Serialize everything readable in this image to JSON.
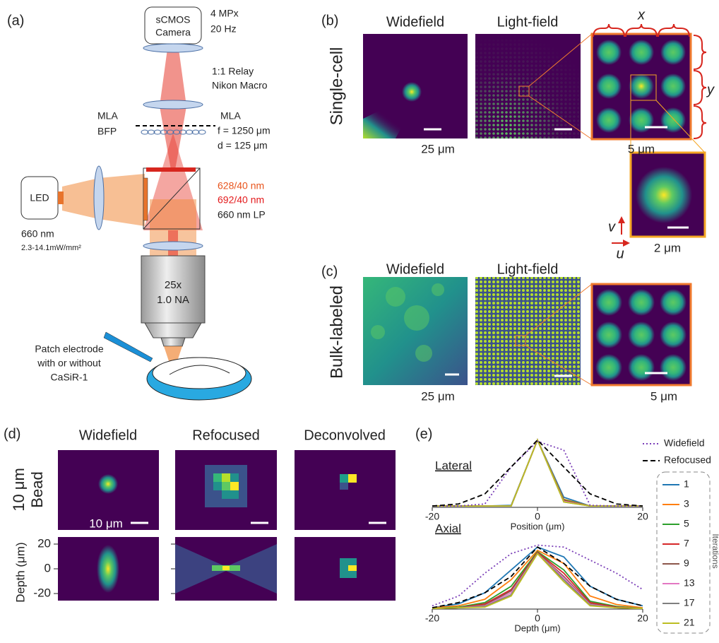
{
  "panel_a": {
    "label": "(a)",
    "camera": [
      "sCMOS",
      "Camera"
    ],
    "camera_specs": [
      "4 MPx",
      "20 Hz"
    ],
    "relay": [
      "1:1 Relay",
      "Nikon Macro"
    ],
    "mla_left": [
      "MLA",
      "BFP"
    ],
    "mla_right": [
      "MLA",
      "f = 1250 μm",
      "d = 125 μm"
    ],
    "filters": [
      "628/40 nm",
      "692/40 nm",
      "660 nm LP"
    ],
    "led": "LED",
    "led_specs": [
      "660 nm",
      "2.3-14.1mW/mm²"
    ],
    "objective": [
      "25x",
      "1.0 NA"
    ],
    "electrode": [
      "Patch electrode",
      "with or without",
      "CaSiR-1"
    ]
  },
  "panel_b": {
    "label": "(b)",
    "row_label": "Single-cell",
    "titles": [
      "Widefield",
      "Light-field"
    ],
    "axis_x": "x",
    "axis_y": "y",
    "scale_bars": [
      "25 μm",
      "5 μm",
      "2 μm"
    ],
    "axis_v": "v",
    "axis_u": "u"
  },
  "panel_c": {
    "label": "(c)",
    "row_label": "Bulk-labeled",
    "titles": [
      "Widefield",
      "Light-field"
    ],
    "scale_bars": [
      "25 μm",
      "5 μm"
    ]
  },
  "panel_d": {
    "label": "(d)",
    "titles": [
      "Widefield",
      "Refocused",
      "Deconvolved"
    ],
    "row_label": [
      "10 μm",
      "Bead"
    ],
    "scale_bar": "10 μm",
    "depth_label": "Depth (μm)",
    "depth_ticks": [
      20,
      0,
      -20
    ]
  },
  "panel_e": {
    "label": "(e)"
  },
  "chart_data": {
    "type": "line",
    "x": [
      -20,
      -15,
      -10,
      -5,
      0,
      5,
      10,
      15,
      20
    ],
    "xlim": [
      -20,
      20
    ],
    "xticks": [
      -20,
      0,
      20
    ],
    "ylim": [
      0,
      1.05
    ],
    "panels": [
      {
        "title": "Lateral",
        "xlabel": "Position (μm)"
      },
      {
        "title": "Axial",
        "xlabel": "Depth (μm)"
      }
    ],
    "legend_title": "Iterations",
    "series": [
      {
        "name": "Widefield",
        "color": "#7b3fb8",
        "dash": "dotted",
        "values": [
          [
            0.02,
            0.02,
            0.05,
            0.6,
            0.98,
            0.85,
            0.03,
            0.02,
            0.02
          ],
          [
            0.05,
            0.2,
            0.55,
            0.85,
            0.98,
            0.95,
            0.75,
            0.55,
            0.3
          ]
        ]
      },
      {
        "name": "Refocused",
        "color": "#000000",
        "dash": "dashed",
        "values": [
          [
            0.02,
            0.05,
            0.2,
            0.6,
            1.0,
            0.6,
            0.2,
            0.05,
            0.02
          ],
          [
            0.02,
            0.1,
            0.25,
            0.5,
            0.95,
            0.7,
            0.35,
            0.15,
            0.05
          ]
        ]
      },
      {
        "name": "1",
        "color": "#1f77b4",
        "dash": "solid",
        "values": [
          [
            0.02,
            0.02,
            0.02,
            0.03,
            1.0,
            0.15,
            0.02,
            0.02,
            0.02
          ],
          [
            0.02,
            0.08,
            0.25,
            0.6,
            0.95,
            0.8,
            0.35,
            0.15,
            0.05
          ]
        ]
      },
      {
        "name": "3",
        "color": "#ff7f0e",
        "dash": "solid",
        "values": [
          [
            0.02,
            0.02,
            0.02,
            0.02,
            1.0,
            0.12,
            0.02,
            0.02,
            0.02
          ],
          [
            0.02,
            0.05,
            0.15,
            0.45,
            0.9,
            0.7,
            0.2,
            0.07,
            0.02
          ]
        ]
      },
      {
        "name": "5",
        "color": "#2ca02c",
        "dash": "solid",
        "values": [
          [
            0.02,
            0.02,
            0.02,
            0.02,
            1.0,
            0.11,
            0.02,
            0.02,
            0.02
          ],
          [
            0.01,
            0.03,
            0.1,
            0.35,
            0.88,
            0.6,
            0.12,
            0.04,
            0.01
          ]
        ]
      },
      {
        "name": "7",
        "color": "#d62728",
        "dash": "solid",
        "values": [
          [
            0.02,
            0.02,
            0.02,
            0.02,
            1.0,
            0.1,
            0.02,
            0.02,
            0.02
          ],
          [
            0.01,
            0.02,
            0.08,
            0.3,
            0.87,
            0.55,
            0.1,
            0.03,
            0.01
          ]
        ]
      },
      {
        "name": "9",
        "color": "#8c564b",
        "dash": "solid",
        "values": [
          [
            0.02,
            0.02,
            0.02,
            0.02,
            1.0,
            0.09,
            0.02,
            0.02,
            0.02
          ],
          [
            0.01,
            0.02,
            0.06,
            0.28,
            0.86,
            0.5,
            0.08,
            0.02,
            0.01
          ]
        ]
      },
      {
        "name": "13",
        "color": "#e377c2",
        "dash": "solid",
        "values": [
          [
            0.02,
            0.02,
            0.02,
            0.02,
            1.0,
            0.09,
            0.02,
            0.02,
            0.02
          ],
          [
            0.01,
            0.02,
            0.05,
            0.25,
            0.85,
            0.48,
            0.07,
            0.02,
            0.01
          ]
        ]
      },
      {
        "name": "17",
        "color": "#7f7f7f",
        "dash": "solid",
        "values": [
          [
            0.02,
            0.02,
            0.02,
            0.02,
            1.0,
            0.08,
            0.02,
            0.02,
            0.02
          ],
          [
            0.01,
            0.02,
            0.04,
            0.22,
            0.85,
            0.45,
            0.06,
            0.02,
            0.01
          ]
        ]
      },
      {
        "name": "21",
        "color": "#bcbd22",
        "dash": "solid",
        "values": [
          [
            0.02,
            0.02,
            0.02,
            0.02,
            1.0,
            0.08,
            0.02,
            0.02,
            0.02
          ],
          [
            0.01,
            0.02,
            0.03,
            0.2,
            0.85,
            0.42,
            0.05,
            0.02,
            0.01
          ]
        ]
      }
    ]
  }
}
